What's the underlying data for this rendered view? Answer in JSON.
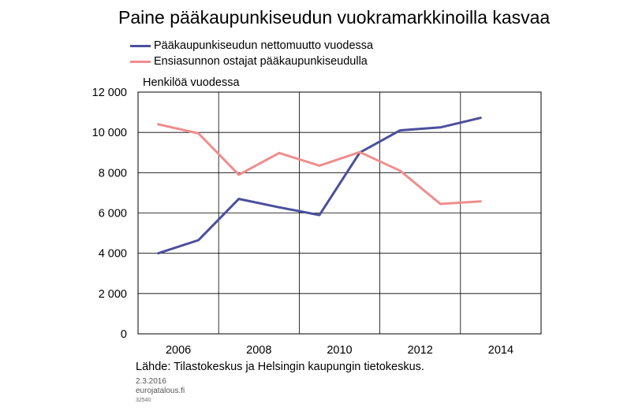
{
  "chart_data": {
    "type": "line",
    "title": "Paine pääkaupunkiseudun vuokramarkkinoilla kasvaa",
    "ylabel": "Henkilöä vuodessa",
    "xlabel": "",
    "x": [
      2005.5,
      2006.5,
      2007.5,
      2008.5,
      2009.5,
      2010.5,
      2011.5,
      2012.5,
      2013.5
    ],
    "xlim": [
      2005,
      2015
    ],
    "ylim": [
      0,
      12000
    ],
    "yticks": [
      0,
      2000,
      4000,
      6000,
      8000,
      10000,
      12000
    ],
    "ytick_labels": [
      "0",
      "2 000",
      "4 000",
      "6 000",
      "8 000",
      "10 000",
      "12 000"
    ],
    "xticks": [
      2006,
      2008,
      2010,
      2012,
      2014
    ],
    "xtick_labels": [
      "2006",
      "2008",
      "2010",
      "2012",
      "2014"
    ],
    "grid": true,
    "legend_position": "top-left",
    "series": [
      {
        "name": "Pääkaupunkiseudun nettomuutto vuodessa",
        "color": "#4b4f9c",
        "values": [
          4000,
          4650,
          6700,
          6280,
          5900,
          9000,
          10100,
          10250,
          10720
        ]
      },
      {
        "name": "Ensiasunnon ostajat pääkaupunkiseudulla",
        "color": "#ef8d8d",
        "values": [
          10400,
          9950,
          7900,
          8980,
          8350,
          9020,
          8100,
          6450,
          6580
        ]
      }
    ]
  },
  "footer": {
    "source": "Lähde: Tilastokeskus ja Helsingin kaupungin tietokeskus.",
    "date": "2.3.2016",
    "site": "eurojatalous.fi",
    "code": "32540"
  }
}
